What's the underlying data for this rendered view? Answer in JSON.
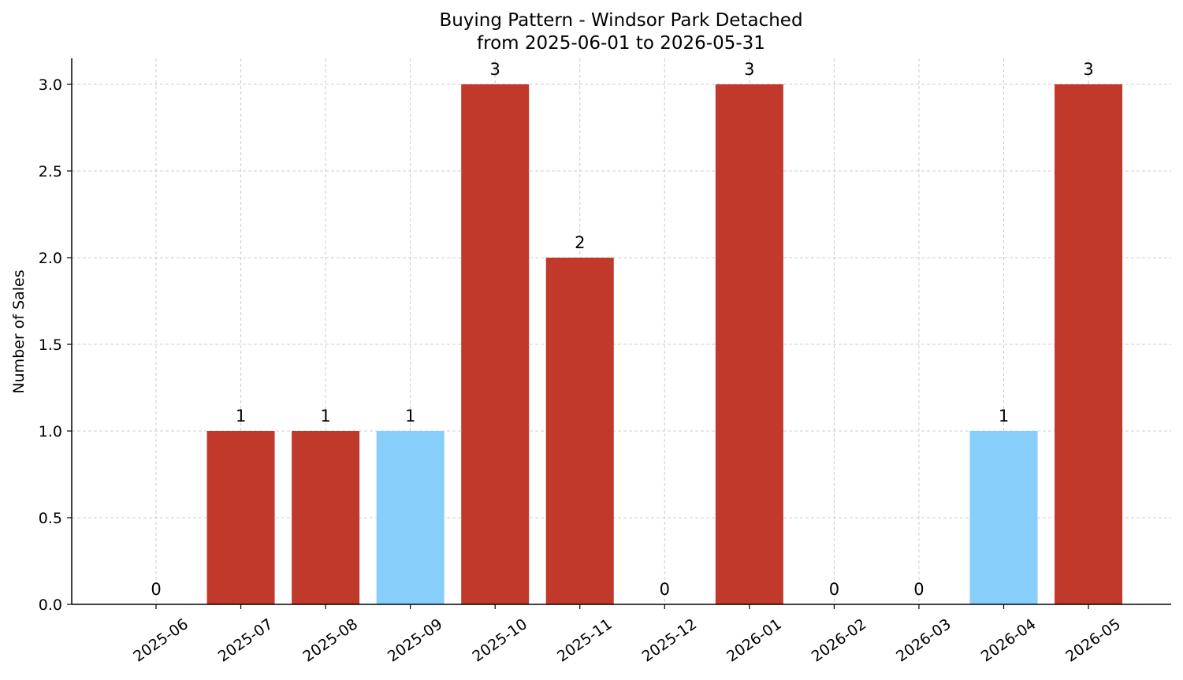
{
  "chart_data": {
    "type": "bar",
    "title": "Buying Pattern - Windsor Park Detached",
    "subtitle": "from 2025-06-01 to 2026-05-31",
    "ylabel": "Number of Sales",
    "xlabel": "",
    "ylim": [
      0,
      3.15
    ],
    "yticks": [
      "0.0",
      "0.5",
      "1.0",
      "1.5",
      "2.0",
      "2.5",
      "3.0"
    ],
    "grid": true,
    "categories": [
      "2025-06",
      "2025-07",
      "2025-08",
      "2025-09",
      "2025-10",
      "2025-11",
      "2025-12",
      "2026-01",
      "2026-02",
      "2026-03",
      "2026-04",
      "2026-05"
    ],
    "values": [
      0,
      1,
      1,
      1,
      3,
      2,
      0,
      3,
      0,
      0,
      1,
      3
    ],
    "colors": [
      "#c0392b",
      "#c0392b",
      "#c0392b",
      "#87cefa",
      "#c0392b",
      "#c0392b",
      "#c0392b",
      "#c0392b",
      "#c0392b",
      "#c0392b",
      "#87cefa",
      "#c0392b"
    ]
  }
}
